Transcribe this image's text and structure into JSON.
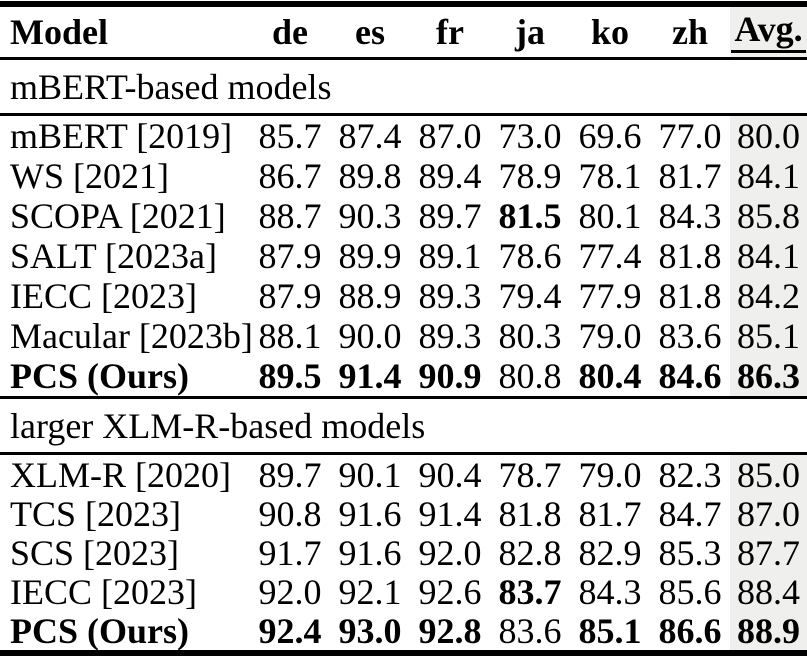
{
  "table": {
    "colors": {
      "avg_column_bg": "#efefed",
      "rule": "#000000",
      "text": "#000000"
    },
    "header": {
      "model_label": "Model",
      "lang_cols": [
        "de",
        "es",
        "fr",
        "ja",
        "ko",
        "zh"
      ],
      "avg_label": "Avg."
    },
    "sections": [
      {
        "title": "mBERT-based models",
        "rows": [
          {
            "model": "mBERT [2019]",
            "vals": [
              "85.7",
              "87.4",
              "87.0",
              "73.0",
              "69.6",
              "77.0"
            ],
            "avg": "80.0"
          },
          {
            "model": "WS [2021]",
            "vals": [
              "86.7",
              "89.8",
              "89.4",
              "78.9",
              "78.1",
              "81.7"
            ],
            "avg": "84.1"
          },
          {
            "model": "SCOPA [2021]",
            "vals": [
              "88.7",
              "90.3",
              "89.7",
              "81.5",
              "80.1",
              "84.3"
            ],
            "avg": "85.8"
          },
          {
            "model": "SALT [2023a]",
            "vals": [
              "87.9",
              "89.9",
              "89.1",
              "78.6",
              "77.4",
              "81.8"
            ],
            "avg": "84.1"
          },
          {
            "model": "IECC [2023]",
            "vals": [
              "87.9",
              "88.9",
              "89.3",
              "79.4",
              "77.9",
              "81.8"
            ],
            "avg": "84.2"
          },
          {
            "model": "Macular [2023b]",
            "vals": [
              "88.1",
              "90.0",
              "89.3",
              "80.3",
              "79.0",
              "83.6"
            ],
            "avg": "85.1"
          },
          {
            "model": "PCS (Ours)",
            "vals": [
              "89.5",
              "91.4",
              "90.9",
              "80.8",
              "80.4",
              "84.6"
            ],
            "avg": "86.3"
          }
        ]
      },
      {
        "title": "larger XLM-R-based models",
        "rows": [
          {
            "model": "XLM-R [2020]",
            "vals": [
              "89.7",
              "90.1",
              "90.4",
              "78.7",
              "79.0",
              "82.3"
            ],
            "avg": "85.0"
          },
          {
            "model": "TCS [2023]",
            "vals": [
              "90.8",
              "91.6",
              "91.4",
              "81.8",
              "81.7",
              "84.7"
            ],
            "avg": "87.0"
          },
          {
            "model": "SCS [2023]",
            "vals": [
              "91.7",
              "91.6",
              "92.0",
              "82.8",
              "82.9",
              "85.3"
            ],
            "avg": "87.7"
          },
          {
            "model": "IECC [2023]",
            "vals": [
              "92.0",
              "92.1",
              "92.6",
              "83.7",
              "84.3",
              "85.6"
            ],
            "avg": "88.4"
          },
          {
            "model": "PCS (Ours)",
            "vals": [
              "92.4",
              "93.0",
              "92.8",
              "83.6",
              "85.1",
              "86.6"
            ],
            "avg": "88.9"
          }
        ]
      }
    ]
  }
}
